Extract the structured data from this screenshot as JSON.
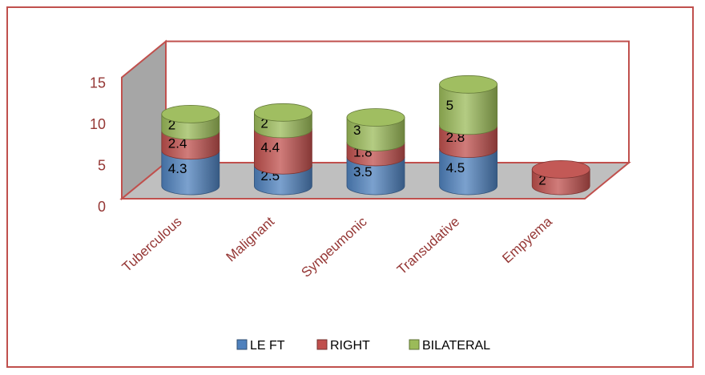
{
  "chart_data": {
    "type": "bar",
    "stacked": true,
    "style": "3d-cylinder",
    "categories": [
      "Tuberculous",
      "Malignant",
      "Synpeumonic",
      "Transudative",
      "Empyema"
    ],
    "series": [
      {
        "name": "LE FT",
        "values": [
          4.3,
          2.5,
          3.5,
          4.5,
          0
        ],
        "color": "#4f81bd",
        "labels": [
          "4.3",
          "2.5",
          "3.5",
          "4.5",
          ""
        ]
      },
      {
        "name": "RIGHT",
        "values": [
          2.4,
          4.4,
          1.8,
          2.8,
          2
        ],
        "color": "#c0504d",
        "labels": [
          "2.4",
          "4.4",
          "1.8",
          "2.8",
          "2"
        ]
      },
      {
        "name": "BILATERAL",
        "values": [
          2,
          2,
          3,
          5,
          0
        ],
        "color": "#9bbb59",
        "labels": [
          "2",
          "2",
          "3",
          "5",
          ""
        ]
      }
    ],
    "yticks": [
      "0",
      "5",
      "10",
      "15"
    ],
    "ylim": [
      0,
      15
    ],
    "legend": "bottom",
    "grid": false,
    "frame_color": "#c0504d",
    "text_color": "#953735"
  }
}
